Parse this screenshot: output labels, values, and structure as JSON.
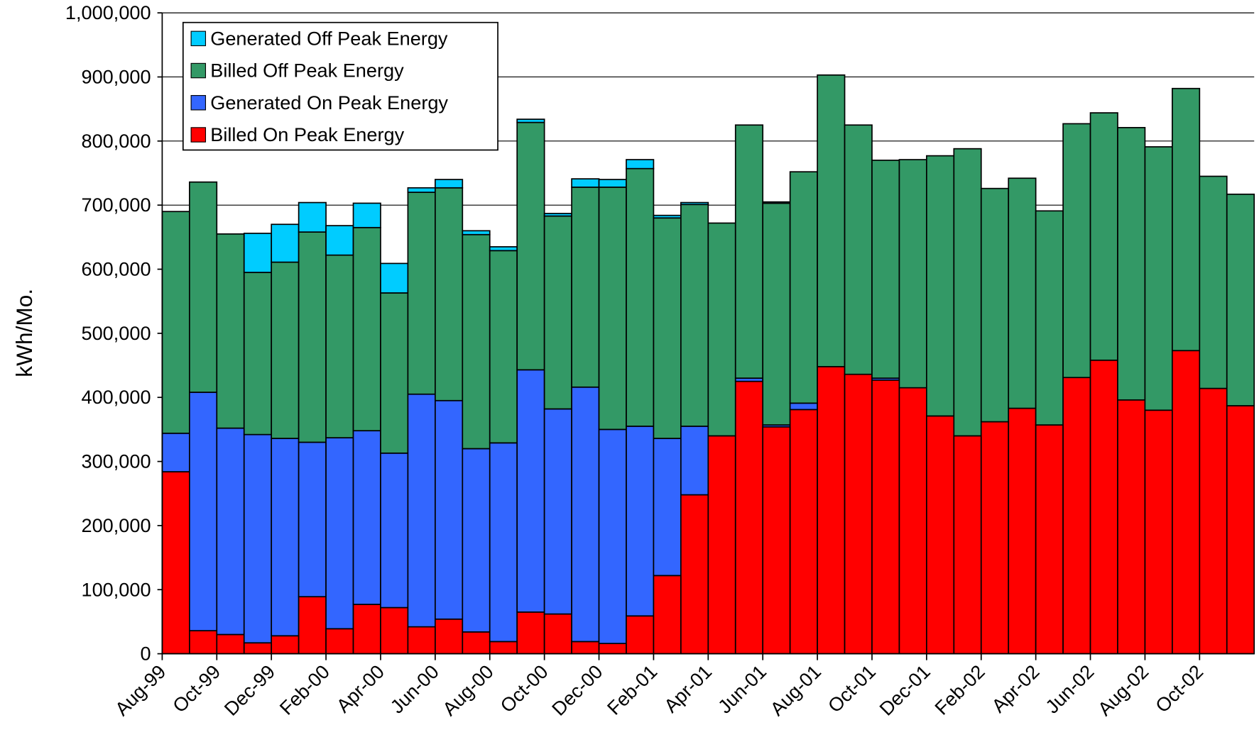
{
  "chart_data": {
    "type": "stacked_bar",
    "y_label": "kWh/Mo.",
    "categories": [
      "Aug-99",
      null,
      "Oct-99",
      null,
      "Dec-99",
      null,
      "Feb-00",
      null,
      "Apr-00",
      null,
      "Jun-00",
      null,
      "Aug-00",
      null,
      "Oct-00",
      null,
      "Dec-00",
      null,
      "Feb-01",
      null,
      "Apr-01",
      null,
      "Jun-01",
      null,
      "Aug-01",
      null,
      "Oct-01",
      null,
      "Dec-01",
      null,
      "Feb-02",
      null,
      "Apr-02",
      null,
      "Jun-02",
      null,
      "Aug-02",
      null,
      "Oct-02",
      null
    ],
    "series": [
      {
        "name": "Billed On Peak Energy",
        "color": "#ff0000",
        "values": [
          284000,
          36000,
          30000,
          17000,
          28000,
          89000,
          39000,
          77000,
          72000,
          42000,
          54000,
          34000,
          19000,
          65000,
          62000,
          19000,
          16000,
          59000,
          122000,
          248000,
          340000,
          425000,
          354000,
          381000,
          448000,
          436000,
          427000,
          415000,
          371000,
          340000,
          362000,
          383000,
          357000,
          431000,
          458000,
          396000,
          380000,
          473000,
          414000,
          387000
        ]
      },
      {
        "name": "Generated On Peak Energy",
        "color": "#3366ff",
        "values": [
          60000,
          372000,
          322000,
          325000,
          308000,
          241000,
          298000,
          271000,
          241000,
          363000,
          341000,
          286000,
          310000,
          378000,
          320000,
          397000,
          334000,
          296000,
          214000,
          107000,
          0,
          5000,
          3000,
          10000,
          0,
          0,
          3000,
          0,
          0,
          0,
          0,
          0,
          0,
          0,
          0,
          0,
          0,
          0,
          0,
          0
        ]
      },
      {
        "name": "Billed Off Peak Energy",
        "color": "#339966",
        "values": [
          346000,
          328000,
          303000,
          253000,
          275000,
          328000,
          285000,
          317000,
          250000,
          315000,
          332000,
          334000,
          300000,
          386000,
          301000,
          312000,
          378000,
          402000,
          344000,
          346000,
          332000,
          395000,
          346000,
          361000,
          455000,
          389000,
          340000,
          356000,
          406000,
          448000,
          364000,
          359000,
          334000,
          396000,
          386000,
          425000,
          411000,
          409000,
          331000,
          330000
        ]
      },
      {
        "name": "Generated Off Peak Energy",
        "color": "#00ccff",
        "values": [
          0,
          0,
          0,
          61000,
          59000,
          46000,
          46000,
          38000,
          46000,
          7000,
          13000,
          6000,
          6000,
          5000,
          4000,
          13000,
          12000,
          14000,
          4000,
          3000,
          0,
          0,
          2000,
          0,
          0,
          0,
          0,
          0,
          0,
          0,
          0,
          0,
          0,
          0,
          0,
          0,
          0,
          0,
          0,
          0
        ]
      }
    ],
    "ylim": [
      0,
      1000000
    ],
    "yticks": [
      0,
      {
        "value": 100000,
        "label": "100,000"
      },
      {
        "value": 200000,
        "label": "200,000"
      },
      {
        "value": 300000,
        "label": "300,000"
      },
      {
        "value": 400000,
        "label": "400,000"
      },
      {
        "value": 500000,
        "label": "500,000"
      },
      {
        "value": 600000,
        "label": "600,000"
      },
      {
        "value": 700000,
        "label": "700,000"
      },
      {
        "value": 800000,
        "label": "800,000"
      },
      {
        "value": 900000,
        "label": "900,000"
      },
      {
        "value": 1000000,
        "label": "1,000,000"
      }
    ],
    "grid": true,
    "legend": "upper left"
  }
}
